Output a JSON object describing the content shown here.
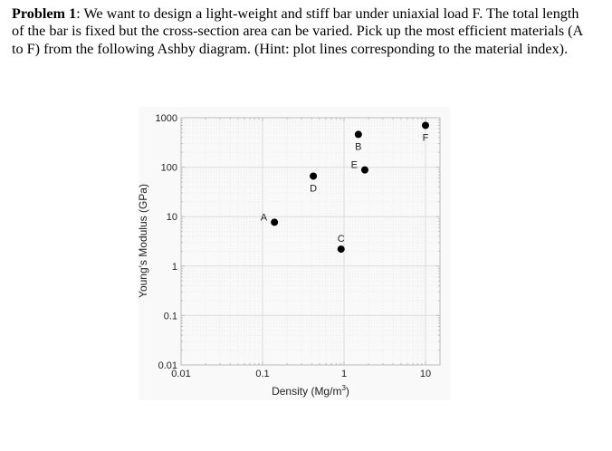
{
  "problem": {
    "label": "Problem 1",
    "text": ": We want to design a light-weight and stiff bar under uniaxial load F. The total length of the bar is fixed but the cross-section area can be varied. Pick up the most efficient materials (A to F) from the following Ashby diagram. (Hint: plot lines corresponding to the material index)."
  },
  "chart_data": {
    "type": "scatter",
    "title": "",
    "xlabel": "Density (Mg/m³)",
    "xlabel_base": "Density (Mg/m",
    "xlabel_sup": "3",
    "xlabel_tail": ")",
    "ylabel": "Young's Modulus (GPa)",
    "xscale": "log",
    "yscale": "log",
    "xlim": [
      0.01,
      15
    ],
    "ylim": [
      0.01,
      1000
    ],
    "xticks": [
      "0.01",
      "0.1",
      "1",
      "10"
    ],
    "yticks": [
      "1000",
      "100",
      "10",
      "1",
      "0.1",
      "0.01"
    ],
    "grid": true,
    "legend": null,
    "points": [
      {
        "label": "A",
        "x": 0.14,
        "y": 7.7,
        "label_pos": "left"
      },
      {
        "label": "B",
        "x": 1.5,
        "y": 460,
        "label_pos": "below"
      },
      {
        "label": "C",
        "x": 0.92,
        "y": 2.2,
        "label_pos": "above"
      },
      {
        "label": "D",
        "x": 0.42,
        "y": 66,
        "label_pos": "below"
      },
      {
        "label": "E",
        "x": 1.8,
        "y": 88,
        "label_pos": "left"
      },
      {
        "label": "F",
        "x": 10,
        "y": 700,
        "label_pos": "below"
      }
    ],
    "colors": {
      "point": "#000000",
      "axis": "#b8b8b8",
      "grid": "#e4e4e4",
      "panel": "#f9f9f9"
    }
  }
}
